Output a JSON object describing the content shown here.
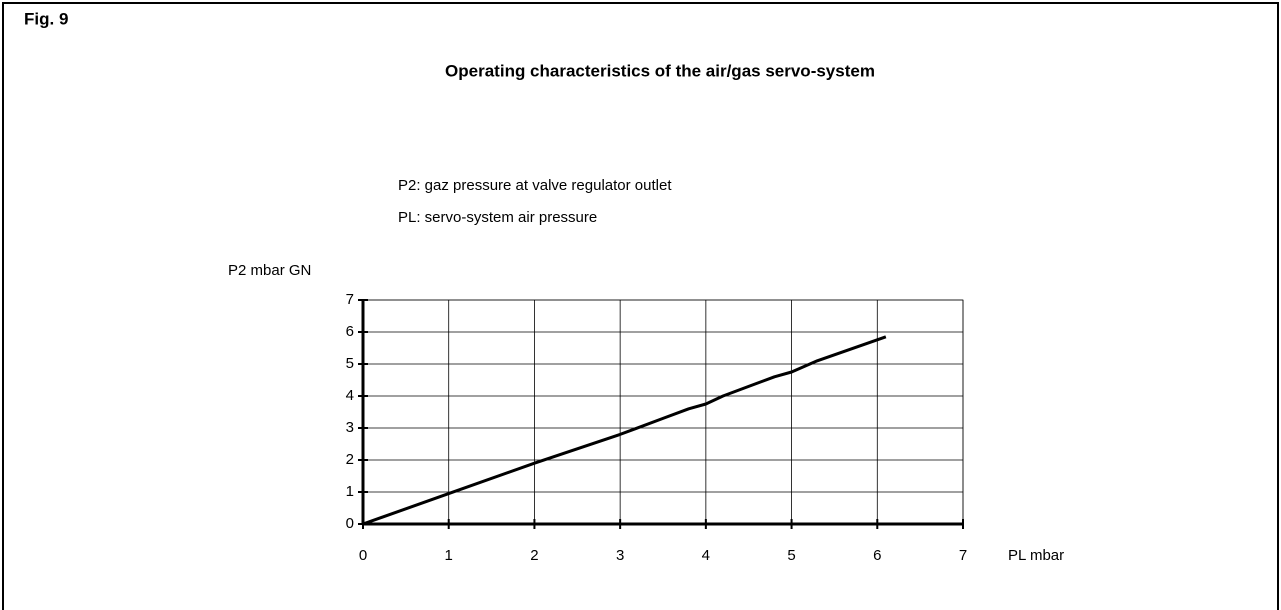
{
  "chart_data": {
    "type": "line",
    "figure_label": "Fig. 9",
    "title": "Operating characteristics of the air/gas servo-system",
    "annotations": [
      "P2: gaz pressure at valve regulator outlet",
      "PL: servo-system air pressure"
    ],
    "xlabel": "PL mbar",
    "ylabel": "P2 mbar GN",
    "x": [
      0,
      1,
      2,
      3,
      3.5,
      3.8,
      4,
      4.2,
      4.5,
      4.8,
      5,
      5.3,
      6.1
    ],
    "series": [
      {
        "color": "#000000",
        "values": [
          0,
          0.95,
          1.9,
          2.8,
          3.3,
          3.6,
          3.75,
          4.0,
          4.3,
          4.6,
          4.75,
          5.1,
          5.85
        ]
      }
    ],
    "xlim": [
      0,
      7
    ],
    "ylim": [
      0,
      7
    ],
    "xticks": [
      0,
      1,
      2,
      3,
      4,
      5,
      6,
      7
    ],
    "yticks": [
      0,
      1,
      2,
      3,
      4,
      5,
      6,
      7
    ],
    "grid": true
  }
}
